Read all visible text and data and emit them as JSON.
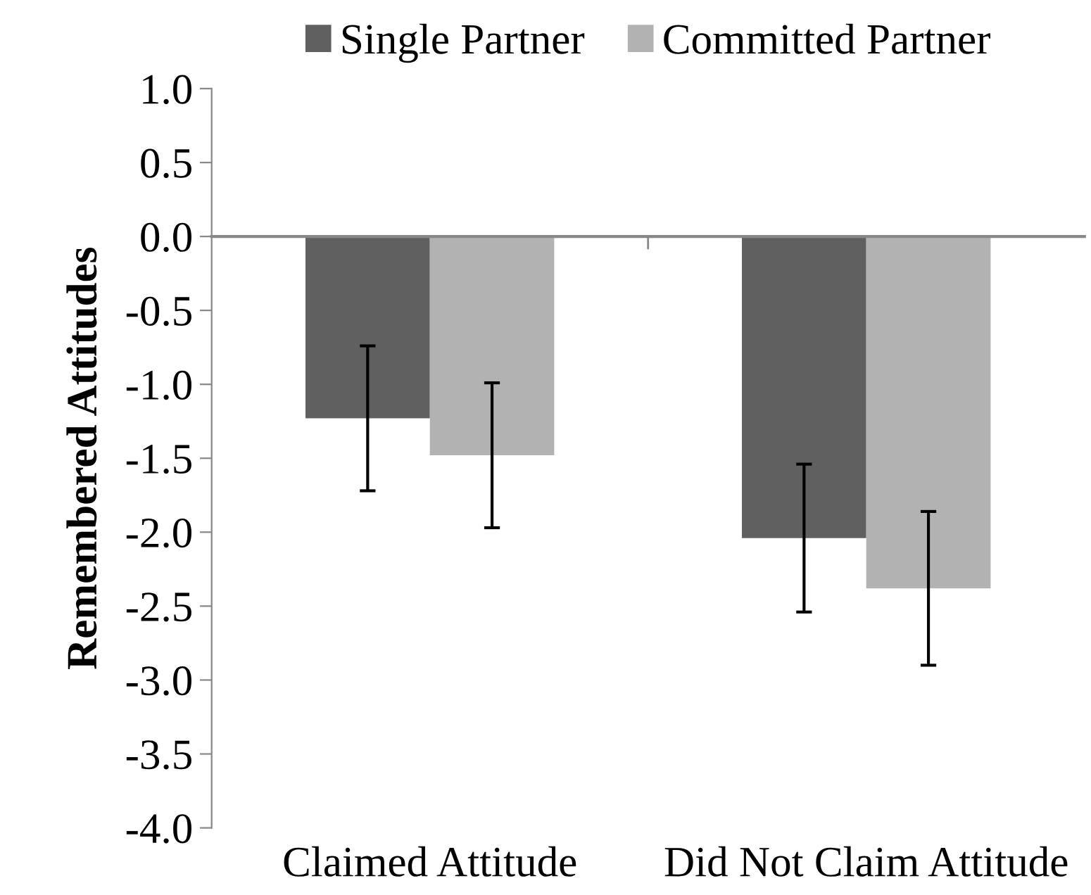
{
  "chart_data": {
    "type": "bar",
    "ylabel": "Remembered Attitudes",
    "categories": [
      "Claimed Attitude",
      "Did Not Claim Attitude"
    ],
    "series": [
      {
        "name": "Single Partner",
        "color": "#606060",
        "values": [
          -1.23,
          -2.04
        ],
        "errors": [
          0.49,
          0.5
        ]
      },
      {
        "name": "Committed Partner",
        "color": "#b2b2b2",
        "values": [
          -1.48,
          -2.38
        ],
        "errors": [
          0.49,
          0.52
        ]
      }
    ],
    "ylim": [
      -4.0,
      1.0
    ],
    "yticks": [
      {
        "value": 1.0,
        "label": "1.0"
      },
      {
        "value": 0.5,
        "label": "0.5"
      },
      {
        "value": 0.0,
        "label": "0.0"
      },
      {
        "value": -0.5,
        "label": "-0.5"
      },
      {
        "value": -1.0,
        "label": "-1.0"
      },
      {
        "value": -1.5,
        "label": "-1.5"
      },
      {
        "value": -2.0,
        "label": "-2.0"
      },
      {
        "value": -2.5,
        "label": "-2.5"
      },
      {
        "value": -3.0,
        "label": "-3.0"
      },
      {
        "value": -3.5,
        "label": "-3.5"
      },
      {
        "value": -4.0,
        "label": "-4.0"
      }
    ],
    "legend": "top"
  }
}
